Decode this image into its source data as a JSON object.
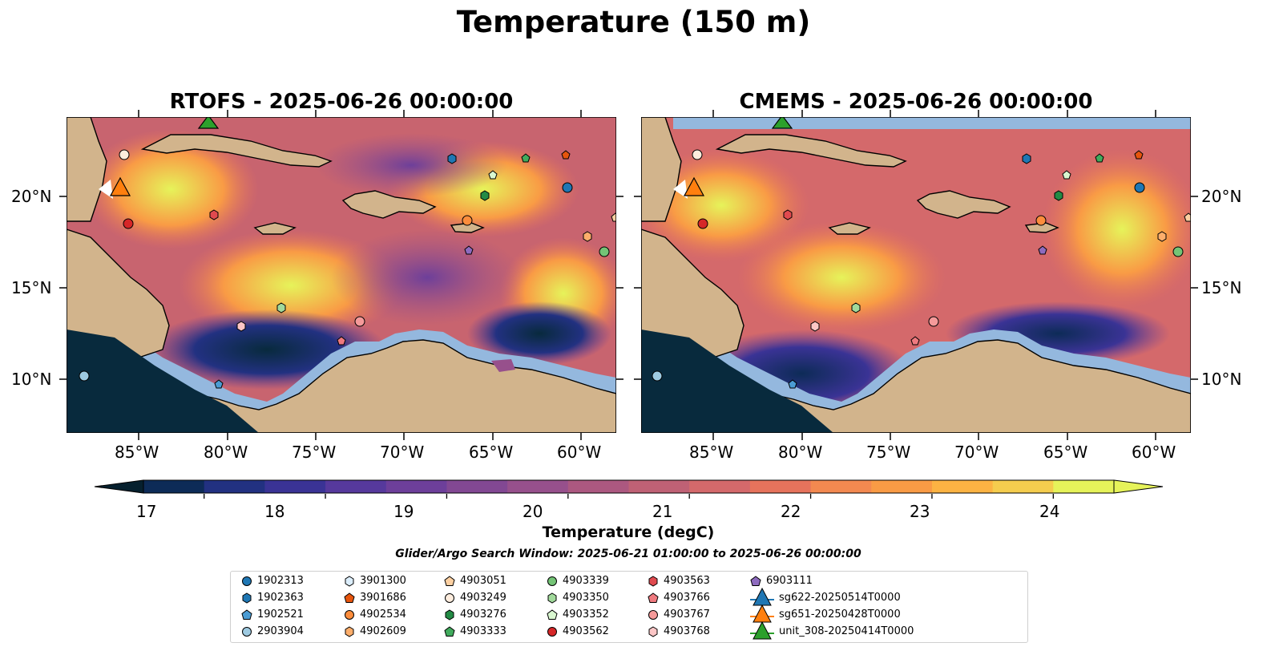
{
  "figure": {
    "title": "Temperature (150 m)",
    "panels": [
      {
        "title": "RTOFS - 2025-06-26 00:00:00"
      },
      {
        "title": "CMEMS - 2025-06-26 00:00:00"
      }
    ],
    "lon_ticks": [
      "85°W",
      "80°W",
      "75°W",
      "70°W",
      "65°W",
      "60°W"
    ],
    "lat_ticks": [
      "20°N",
      "15°N",
      "10°N"
    ],
    "colorbar": {
      "label": "Temperature (degC)",
      "ticks": [
        "17",
        "18",
        "19",
        "20",
        "21",
        "22",
        "23",
        "24"
      ],
      "range": [
        16.5,
        24.5
      ],
      "colors": [
        "#082a3d",
        "#0d2b57",
        "#223181",
        "#3a3395",
        "#56399c",
        "#6d3f9a",
        "#824893",
        "#97508c",
        "#ac5880",
        "#bf6175",
        "#d4696b",
        "#e6735c",
        "#f38950",
        "#f99b45",
        "#fcb343",
        "#f5cd4e",
        "#e6f35a"
      ]
    },
    "search_window": "Glider/Argo Search Window: 2025-06-21 01:00:00 to 2025-06-26 00:00:00"
  },
  "legend": [
    {
      "label": "1902313",
      "marker": "circle",
      "color": "#1f77b4"
    },
    {
      "label": "1902363",
      "marker": "hexagon",
      "color": "#1f77b4"
    },
    {
      "label": "1902521",
      "marker": "pentagon",
      "color": "#4b9cd3"
    },
    {
      "label": "2903904",
      "marker": "circle",
      "color": "#9ecae1"
    },
    {
      "label": "3901300",
      "marker": "hexagon",
      "color": "#dceefc"
    },
    {
      "label": "3901686",
      "marker": "pentagon",
      "color": "#e6550d"
    },
    {
      "label": "4902534",
      "marker": "circle",
      "color": "#fd8d3c"
    },
    {
      "label": "4902609",
      "marker": "hexagon",
      "color": "#fdae6b"
    },
    {
      "label": "4903051",
      "marker": "pentagon",
      "color": "#fdd0a2"
    },
    {
      "label": "4903249",
      "marker": "circle",
      "color": "#feedde"
    },
    {
      "label": "4903276",
      "marker": "hexagon",
      "color": "#238b45"
    },
    {
      "label": "4903333",
      "marker": "pentagon",
      "color": "#41ab5d"
    },
    {
      "label": "4903339",
      "marker": "circle",
      "color": "#74c476"
    },
    {
      "label": "4903350",
      "marker": "hexagon",
      "color": "#a1d99b"
    },
    {
      "label": "4903352",
      "marker": "pentagon",
      "color": "#d9f7d0"
    },
    {
      "label": "4903562",
      "marker": "circle",
      "color": "#d62728"
    },
    {
      "label": "4903563",
      "marker": "hexagon",
      "color": "#e04a4f"
    },
    {
      "label": "4903766",
      "marker": "pentagon",
      "color": "#ef7a7f"
    },
    {
      "label": "4903767",
      "marker": "circle",
      "color": "#f59a9a"
    },
    {
      "label": "4903768",
      "marker": "hexagon",
      "color": "#fcc6c6"
    },
    {
      "label": "6903111",
      "marker": "pentagon",
      "color": "#8e6bbf"
    },
    {
      "label": "sg622-20250514T0000",
      "marker": "triangle",
      "color": "#1f77b4"
    },
    {
      "label": "sg651-20250428T0000",
      "marker": "triangle",
      "color": "#ff7f0e"
    },
    {
      "label": "unit_308-20250414T0000",
      "marker": "triangle",
      "color": "#2ca02c"
    }
  ],
  "map_extent": {
    "lon": [
      -89,
      -58
    ],
    "lat": [
      7,
      24
    ]
  },
  "observations": [
    {
      "id": "1902313",
      "lon": -61,
      "lat": 20.5
    },
    {
      "id": "1902363",
      "lon": -67.5,
      "lat": 22
    },
    {
      "id": "2903904",
      "lon": -88,
      "lat": 10.2
    },
    {
      "id": "4903249",
      "lon": -85.8,
      "lat": 22.3
    },
    {
      "id": "4903051",
      "lon": -58.5,
      "lat": 18.9
    },
    {
      "id": "3901686",
      "lon": -61,
      "lat": 22.2
    },
    {
      "id": "4903352",
      "lon": -65.5,
      "lat": 21.1
    },
    {
      "id": "4903333",
      "lon": -63,
      "lat": 22
    },
    {
      "id": "4903276",
      "lon": -65,
      "lat": 20
    },
    {
      "id": "4902534",
      "lon": -66.5,
      "lat": 18.7
    },
    {
      "id": "4902609",
      "lon": -60,
      "lat": 17.8
    },
    {
      "id": "4903339",
      "lon": -58.5,
      "lat": 17
    },
    {
      "id": "6903111",
      "lon": -66.3,
      "lat": 17
    },
    {
      "id": "4903562",
      "lon": -85.5,
      "lat": 18.6
    },
    {
      "id": "4903563",
      "lon": -81,
      "lat": 18.9
    },
    {
      "id": "4903350",
      "lon": -77,
      "lat": 13.9
    },
    {
      "id": "4903768",
      "lon": -80,
      "lat": 12.9
    },
    {
      "id": "4903767",
      "lon": -72.5,
      "lat": 13.2
    },
    {
      "id": "4903766",
      "lon": -73.8,
      "lat": 12
    },
    {
      "id": "1902521",
      "lon": -79.5,
      "lat": 9.7
    },
    {
      "id": "sg651-20250428T0000",
      "lon": -86,
      "lat": 20.5
    },
    {
      "id": "unit_308-20250414T0000",
      "lon": -81,
      "lat": 24
    }
  ]
}
